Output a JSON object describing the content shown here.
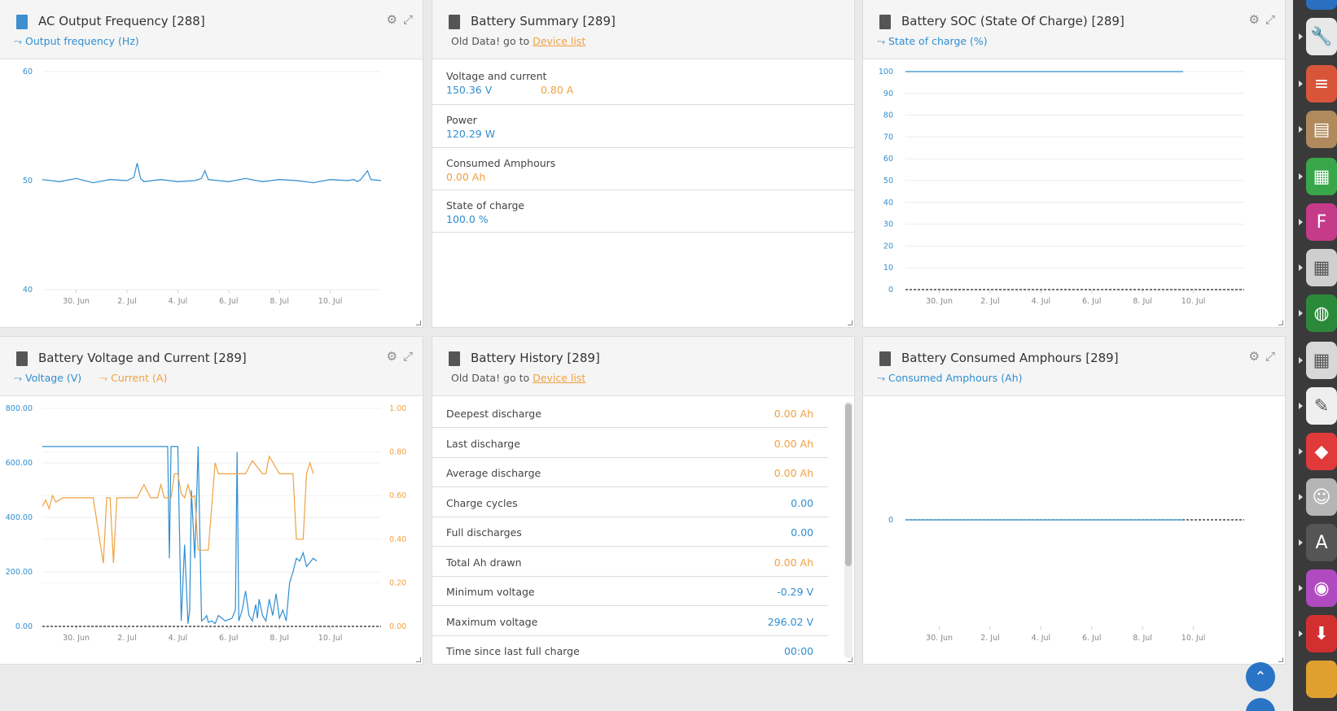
{
  "widgets": {
    "ac_freq": {
      "title": "AC Output Frequency [288]",
      "legend": [
        "Output frequency (Hz)"
      ],
      "settings_icon": "gear-icon",
      "expand_icon": "expand-icon"
    },
    "battery_summary": {
      "title": "Battery Summary [289]",
      "old_data_text": "Old Data! go to",
      "old_data_link": "Device list",
      "rows": [
        {
          "label": "Voltage and current",
          "values": [
            {
              "text": "150.36 V",
              "color": "blue"
            },
            {
              "text": "0.80 A",
              "color": "orange"
            }
          ]
        },
        {
          "label": "Power",
          "values": [
            {
              "text": "120.29 W",
              "color": "blue"
            }
          ]
        },
        {
          "label": "Consumed Amphours",
          "values": [
            {
              "text": "0.00 Ah",
              "color": "orange"
            }
          ]
        },
        {
          "label": "State of charge",
          "values": [
            {
              "text": "100.0 %",
              "color": "blue"
            }
          ]
        }
      ]
    },
    "battery_soc": {
      "title": "Battery SOC (State Of Charge) [289]",
      "legend": [
        "State of charge (%)"
      ]
    },
    "battery_vc": {
      "title": "Battery Voltage and Current [289]",
      "legend": [
        "Voltage (V)",
        "Current (A)"
      ]
    },
    "battery_history": {
      "title": "Battery History [289]",
      "old_data_text": "Old Data! go to",
      "old_data_link": "Device list",
      "rows": [
        {
          "label": "Deepest discharge",
          "value": "0.00 Ah",
          "color": "orange"
        },
        {
          "label": "Last discharge",
          "value": "0.00 Ah",
          "color": "orange"
        },
        {
          "label": "Average discharge",
          "value": "0.00 Ah",
          "color": "orange"
        },
        {
          "label": "Charge cycles",
          "value": "0.00",
          "color": "blue"
        },
        {
          "label": "Full discharges",
          "value": "0.00",
          "color": "blue"
        },
        {
          "label": "Total Ah drawn",
          "value": "0.00 Ah",
          "color": "orange"
        },
        {
          "label": "Minimum voltage",
          "value": "-0.29 V",
          "color": "blue"
        },
        {
          "label": "Maximum voltage",
          "value": "296.02 V",
          "color": "blue"
        },
        {
          "label": "Time since last full charge",
          "value": "00:00",
          "color": "blue"
        }
      ]
    },
    "battery_ah": {
      "title": "Battery Consumed Amphours [289]",
      "legend": [
        "Consumed Amphours (Ah)"
      ]
    }
  },
  "colors": {
    "blue": "#2f8ed0",
    "orange": "#f0a142"
  },
  "dock": {
    "icons": [
      "app-icon-blue",
      "wrench-icon",
      "stack-icon",
      "archive-icon",
      "spreadsheet-icon",
      "f-app-icon",
      "calculator-icon",
      "globe-icon",
      "calculator2-icon",
      "notepad-icon",
      "anydesk-icon",
      "face-app-icon",
      "software-updater-icon",
      "screen-record-icon",
      "download-icon",
      "folder-icon"
    ]
  },
  "chart_data": [
    {
      "type": "line",
      "x_ticks": [
        "30. Jun",
        "2. Jul",
        "4. Jul",
        "6. Jul",
        "8. Jul",
        "10. Jul"
      ],
      "y_ticks": [
        40,
        50,
        60
      ],
      "ylim": [
        40,
        60
      ],
      "series": [
        {
          "name": "Output frequency (Hz)",
          "color": "#2f8ed0",
          "x": [
            0,
            5,
            10,
            15,
            20,
            25,
            27,
            28,
            29,
            30,
            35,
            40,
            45,
            47,
            48,
            49,
            55,
            60,
            65,
            70,
            75,
            80,
            85,
            90,
            92,
            93,
            94,
            96,
            97,
            100
          ],
          "y": [
            50.1,
            49.9,
            50.2,
            49.8,
            50.1,
            50.0,
            50.3,
            51.6,
            50.2,
            49.9,
            50.1,
            49.9,
            50.0,
            50.2,
            50.9,
            50.1,
            49.9,
            50.2,
            49.9,
            50.1,
            50.0,
            49.8,
            50.1,
            50.0,
            50.1,
            49.9,
            50.1,
            50.9,
            50.1,
            50.0
          ]
        }
      ]
    },
    {
      "type": "line",
      "x_ticks": [
        "30. Jun",
        "2. Jul",
        "4. Jul",
        "6. Jul",
        "8. Jul",
        "10. Jul"
      ],
      "y_ticks": [
        0,
        10,
        20,
        30,
        40,
        50,
        60,
        70,
        80,
        90,
        100
      ],
      "ylim": [
        0,
        100
      ],
      "series": [
        {
          "name": "State of charge (%)",
          "color": "#2f8ed0",
          "x": [
            0,
            82
          ],
          "y": [
            100,
            100
          ]
        }
      ]
    },
    {
      "type": "line",
      "x_ticks": [
        "30. Jun",
        "2. Jul",
        "4. Jul",
        "6. Jul",
        "8. Jul",
        "10. Jul"
      ],
      "y_ticks_left": [
        "0.00",
        "200.00",
        "400.00",
        "600.00",
        "800.00"
      ],
      "y_ticks_right": [
        "0.00",
        "0.20",
        "0.40",
        "0.60",
        "0.80",
        "1.00"
      ],
      "ylim_left": [
        0,
        800
      ],
      "ylim_right": [
        0,
        1
      ],
      "series": [
        {
          "name": "Voltage (V)",
          "color": "#2f8ed0",
          "axis": "left",
          "x": [
            0,
            36,
            37,
            37.5,
            38,
            38.5,
            39,
            40,
            41,
            42,
            43,
            43.5,
            44,
            45,
            46,
            47,
            48,
            48.5,
            49,
            50,
            51,
            52,
            54,
            56,
            57,
            57.5,
            58,
            59,
            60,
            61,
            62,
            63,
            63.5,
            64,
            65,
            66,
            67,
            68,
            69,
            70,
            71,
            72,
            73,
            74,
            75,
            76,
            77,
            78,
            80,
            81
          ],
          "y": [
            660,
            660,
            660,
            250,
            660,
            660,
            660,
            660,
            20,
            300,
            10,
            60,
            500,
            250,
            660,
            20,
            30,
            40,
            15,
            20,
            10,
            40,
            20,
            30,
            60,
            640,
            20,
            60,
            130,
            40,
            20,
            80,
            30,
            100,
            40,
            20,
            100,
            40,
            120,
            30,
            60,
            20,
            160,
            200,
            250,
            240,
            270,
            220,
            250,
            240
          ]
        },
        {
          "name": "Current (A)",
          "color": "#f0a142",
          "axis": "right",
          "x": [
            0,
            1,
            2,
            3,
            4,
            6,
            8,
            10,
            12,
            15,
            18,
            19,
            20,
            21,
            22,
            25,
            28,
            30,
            32,
            34,
            35,
            36,
            37,
            38,
            39,
            40,
            41,
            42,
            43,
            44,
            45,
            46,
            47,
            48,
            49,
            51,
            52,
            55,
            57,
            60,
            62,
            65,
            66,
            67,
            70,
            72,
            74,
            75,
            76,
            77,
            78,
            79,
            80
          ],
          "y": [
            0.55,
            0.58,
            0.54,
            0.6,
            0.57,
            0.59,
            0.59,
            0.59,
            0.59,
            0.59,
            0.29,
            0.59,
            0.59,
            0.29,
            0.59,
            0.59,
            0.59,
            0.65,
            0.59,
            0.59,
            0.65,
            0.59,
            0.59,
            0.59,
            0.7,
            0.7,
            0.61,
            0.59,
            0.65,
            0.59,
            0.6,
            0.35,
            0.35,
            0.35,
            0.35,
            0.75,
            0.7,
            0.7,
            0.7,
            0.7,
            0.76,
            0.7,
            0.7,
            0.78,
            0.7,
            0.7,
            0.7,
            0.4,
            0.4,
            0.4,
            0.7,
            0.75,
            0.7
          ]
        }
      ]
    },
    {
      "type": "line",
      "x_ticks": [
        "30. Jun",
        "2. Jul",
        "4. Jul",
        "6. Jul",
        "8. Jul",
        "10. Jul"
      ],
      "y_ticks": [
        0
      ],
      "series": [
        {
          "name": "Consumed Amphours (Ah)",
          "color": "#2f8ed0",
          "x": [
            0,
            82
          ],
          "y": [
            0,
            0
          ]
        }
      ]
    }
  ]
}
